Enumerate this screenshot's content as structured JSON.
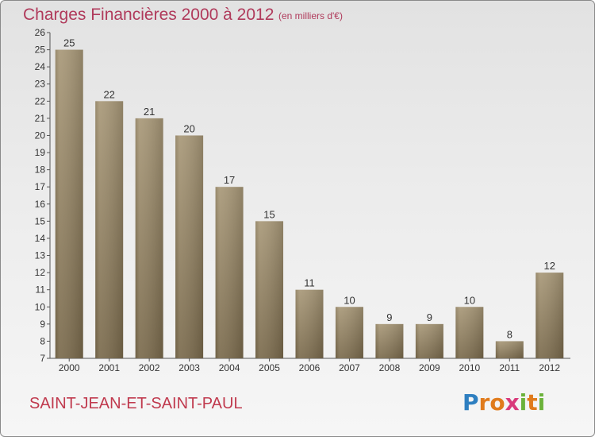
{
  "title": "Charges Financières 2000 à 2012",
  "subtitle": "(en milliers d'€)",
  "place": "SAINT-JEAN-ET-SAINT-PAUL",
  "logo": {
    "text": "Proxiti",
    "letters": [
      {
        "ch": "P",
        "color": "#2e7fc0"
      },
      {
        "ch": "r",
        "color": "#e07b1c"
      },
      {
        "ch": "o",
        "color": "#e07b1c"
      },
      {
        "ch": "x",
        "color": "#d93a7a"
      },
      {
        "ch": "i",
        "color": "#6bb23a"
      },
      {
        "ch": "t",
        "color": "#e07b1c"
      },
      {
        "ch": "i",
        "color": "#6bb23a"
      }
    ]
  },
  "colors": {
    "bar_top": "#a89878",
    "bar_bottom": "#7a6a4c",
    "title": "#b03a5b"
  },
  "chart_data": {
    "type": "bar",
    "categories": [
      "2000",
      "2001",
      "2002",
      "2003",
      "2004",
      "2005",
      "2006",
      "2007",
      "2008",
      "2009",
      "2010",
      "2011",
      "2012"
    ],
    "values": [
      25,
      22,
      21,
      20,
      17,
      15,
      11,
      10,
      9,
      9,
      10,
      8,
      12
    ],
    "title": "Charges Financières 2000 à 2012",
    "subtitle": "(en milliers d'€)",
    "xlabel": "",
    "ylabel": "",
    "ylim": [
      7,
      26
    ],
    "yticks": [
      7,
      8,
      9,
      10,
      11,
      12,
      13,
      14,
      15,
      16,
      17,
      18,
      19,
      20,
      21,
      22,
      23,
      24,
      25,
      26
    ],
    "grid": false,
    "data_labels": true
  }
}
